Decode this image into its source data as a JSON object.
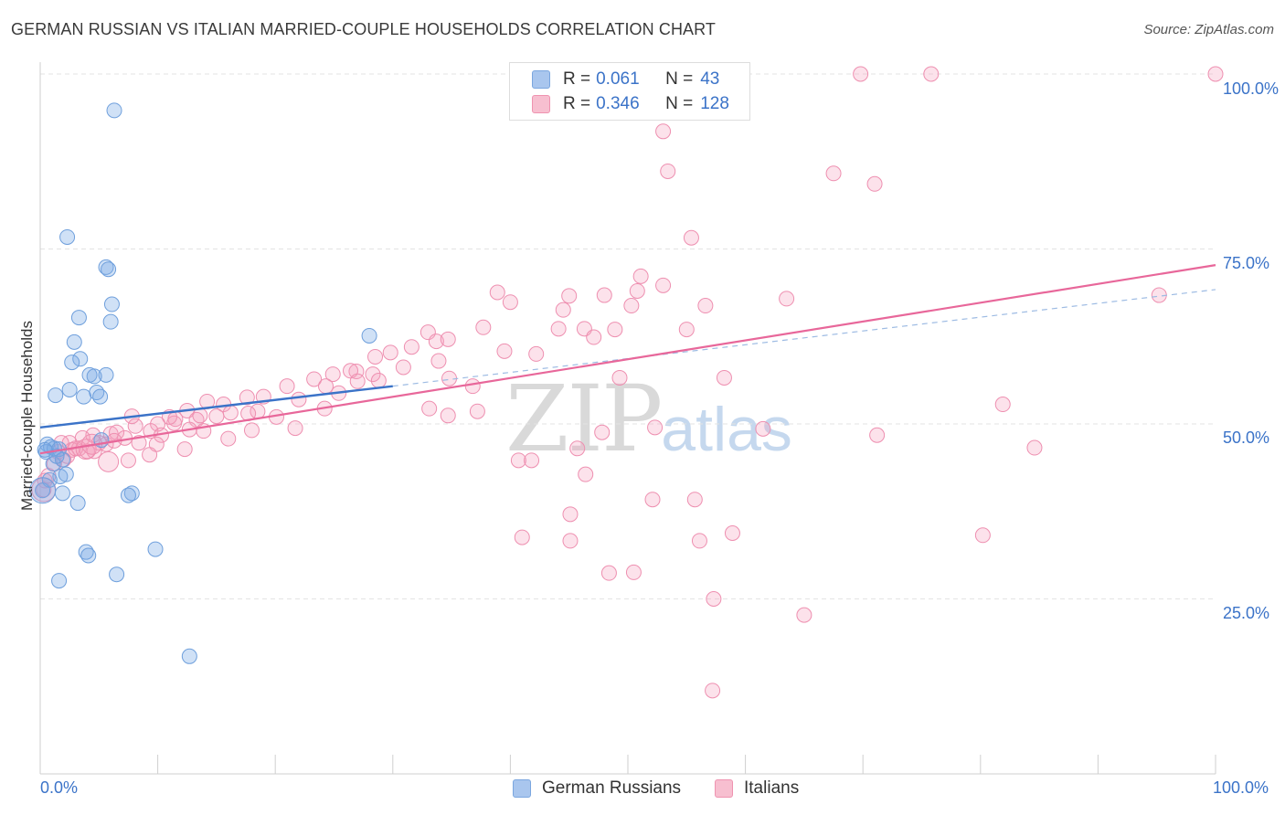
{
  "header": {
    "title": "GERMAN RUSSIAN VS ITALIAN MARRIED-COUPLE HOUSEHOLDS CORRELATION CHART",
    "source": "Source: ZipAtlas.com"
  },
  "watermark": {
    "zip": "ZIP",
    "atlas": "atlas"
  },
  "stats": {
    "rows": [
      {
        "r_label": "R =",
        "r_value": "0.061",
        "n_label": "N =",
        "n_value": "43",
        "color": "#a9c6ee",
        "border": "#7aa6df"
      },
      {
        "r_label": "R =",
        "r_value": "0.346",
        "n_label": "N =",
        "n_value": "128",
        "color": "#f7bfd0",
        "border": "#ef93b0"
      }
    ]
  },
  "legend": {
    "german_label": "German Russians",
    "italian_label": "Italians"
  },
  "colors": {
    "blue_fill": "rgba(120,168,230,0.35)",
    "blue_stroke": "#6e9fdc",
    "blue_line": "#3b73c8",
    "pink_fill": "rgba(244,160,190,0.30)",
    "pink_stroke": "#ee8fb0",
    "pink_line": "#e8679a",
    "grid": "#e3e3e3",
    "axis_text": "#3b73c8"
  },
  "chart_data": {
    "type": "scatter",
    "title": "GERMAN RUSSIAN VS ITALIAN MARRIED-COUPLE HOUSEHOLDS CORRELATION CHART",
    "xlabel": "",
    "ylabel": "Married-couple Households",
    "xlim": [
      0,
      100
    ],
    "ylim": [
      0,
      103
    ],
    "x_tick_labels": [
      "0.0%",
      "100.0%"
    ],
    "y_ticks": [
      25,
      50,
      75,
      100
    ],
    "y_tick_labels": [
      "25.0%",
      "50.0%",
      "75.0%",
      "100.0%"
    ],
    "grid": true,
    "legend_position": "bottom-center",
    "series": [
      {
        "name": "German Russians",
        "r": 0.061,
        "n": 43,
        "trend": {
          "x": [
            0,
            30
          ],
          "y": [
            49.5,
            55.4
          ]
        },
        "trend_dashed_extension": {
          "x": [
            30,
            100
          ],
          "y": [
            55.4,
            69.2
          ]
        },
        "points": [
          [
            6.3,
            94.8
          ],
          [
            2.3,
            76.7
          ],
          [
            5.6,
            72.4
          ],
          [
            5.8,
            72.1
          ],
          [
            6.1,
            67.1
          ],
          [
            6.0,
            64.6
          ],
          [
            3.3,
            65.2
          ],
          [
            2.9,
            61.7
          ],
          [
            3.4,
            59.3
          ],
          [
            2.7,
            58.8
          ],
          [
            4.2,
            57.0
          ],
          [
            5.6,
            57.0
          ],
          [
            4.6,
            56.8
          ],
          [
            4.8,
            54.5
          ],
          [
            1.3,
            54.1
          ],
          [
            2.5,
            54.9
          ],
          [
            3.7,
            53.9
          ],
          [
            5.1,
            53.9
          ],
          [
            0.6,
            47.1
          ],
          [
            0.9,
            46.7
          ],
          [
            1.2,
            46.5
          ],
          [
            0.5,
            46.0
          ],
          [
            1.6,
            46.4
          ],
          [
            5.2,
            47.7
          ],
          [
            1.1,
            44.3
          ],
          [
            1.9,
            44.9
          ],
          [
            1.7,
            42.5
          ],
          [
            2.2,
            42.8
          ],
          [
            0.8,
            42.0
          ],
          [
            1.9,
            40.1
          ],
          [
            3.2,
            38.7
          ],
          [
            7.8,
            40.1
          ],
          [
            7.5,
            39.8
          ],
          [
            3.9,
            31.7
          ],
          [
            4.1,
            31.2
          ],
          [
            9.8,
            32.1
          ],
          [
            1.6,
            27.6
          ],
          [
            6.5,
            28.5
          ],
          [
            12.7,
            16.8
          ],
          [
            28.0,
            62.6
          ],
          [
            0.2,
            40.5
          ],
          [
            0.4,
            46.3
          ],
          [
            1.4,
            45.4
          ]
        ],
        "big_points": [
          [
            0.2,
            40.5,
            14
          ]
        ]
      },
      {
        "name": "Italians",
        "r": 0.346,
        "n": 128,
        "trend": {
          "x": [
            0,
            100
          ],
          "y": [
            45.8,
            72.7
          ]
        },
        "points": [
          [
            69.8,
            100.0
          ],
          [
            75.8,
            100.0
          ],
          [
            100.0,
            100.0
          ],
          [
            53.0,
            91.8
          ],
          [
            53.4,
            86.1
          ],
          [
            67.5,
            85.8
          ],
          [
            71.0,
            84.3
          ],
          [
            55.4,
            76.6
          ],
          [
            51.1,
            71.1
          ],
          [
            53.0,
            69.8
          ],
          [
            50.8,
            69.0
          ],
          [
            45.0,
            68.3
          ],
          [
            48.0,
            68.4
          ],
          [
            63.5,
            67.9
          ],
          [
            38.9,
            68.8
          ],
          [
            40.0,
            67.4
          ],
          [
            56.6,
            66.9
          ],
          [
            50.3,
            66.9
          ],
          [
            44.5,
            66.3
          ],
          [
            95.2,
            68.4
          ],
          [
            37.7,
            63.8
          ],
          [
            44.1,
            63.6
          ],
          [
            46.3,
            63.6
          ],
          [
            48.9,
            63.5
          ],
          [
            55.0,
            63.5
          ],
          [
            47.1,
            62.4
          ],
          [
            33.0,
            63.1
          ],
          [
            33.7,
            61.8
          ],
          [
            31.6,
            61.0
          ],
          [
            29.8,
            60.2
          ],
          [
            28.5,
            59.6
          ],
          [
            34.7,
            62.1
          ],
          [
            39.5,
            60.4
          ],
          [
            42.2,
            60.0
          ],
          [
            33.9,
            59.0
          ],
          [
            30.9,
            58.1
          ],
          [
            26.9,
            57.5
          ],
          [
            26.4,
            57.6
          ],
          [
            28.3,
            57.1
          ],
          [
            24.9,
            57.1
          ],
          [
            23.3,
            56.4
          ],
          [
            24.3,
            55.4
          ],
          [
            21.0,
            55.4
          ],
          [
            22.0,
            53.5
          ],
          [
            25.4,
            54.4
          ],
          [
            27.0,
            56.1
          ],
          [
            28.8,
            56.2
          ],
          [
            34.8,
            56.5
          ],
          [
            36.8,
            55.4
          ],
          [
            49.3,
            56.6
          ],
          [
            58.2,
            56.6
          ],
          [
            19.0,
            53.9
          ],
          [
            17.6,
            53.8
          ],
          [
            18.5,
            51.8
          ],
          [
            20.1,
            51.0
          ],
          [
            15.6,
            52.8
          ],
          [
            14.2,
            53.2
          ],
          [
            16.2,
            51.6
          ],
          [
            17.7,
            51.5
          ],
          [
            12.5,
            51.9
          ],
          [
            11.5,
            50.7
          ],
          [
            11.4,
            50.1
          ],
          [
            13.3,
            50.6
          ],
          [
            15.0,
            51.1
          ],
          [
            13.6,
            51.2
          ],
          [
            11.0,
            51.0
          ],
          [
            10.0,
            50.0
          ],
          [
            8.1,
            49.7
          ],
          [
            9.4,
            49.0
          ],
          [
            7.8,
            51.1
          ],
          [
            10.3,
            48.4
          ],
          [
            12.7,
            49.2
          ],
          [
            13.9,
            49.0
          ],
          [
            8.4,
            47.3
          ],
          [
            9.9,
            47.1
          ],
          [
            5.6,
            47.1
          ],
          [
            4.5,
            48.4
          ],
          [
            6.0,
            48.6
          ],
          [
            6.5,
            48.8
          ],
          [
            7.2,
            48.0
          ],
          [
            3.6,
            48.0
          ],
          [
            2.5,
            47.3
          ],
          [
            3.3,
            46.5
          ],
          [
            4.0,
            46.1
          ],
          [
            5.0,
            47.3
          ],
          [
            1.8,
            47.3
          ],
          [
            2.7,
            46.3
          ],
          [
            1.5,
            46.0
          ],
          [
            2.3,
            45.4
          ],
          [
            1.2,
            44.3
          ],
          [
            2.0,
            44.9
          ],
          [
            0.7,
            42.6
          ],
          [
            0.4,
            41.9
          ],
          [
            0.3,
            40.6
          ],
          [
            3.0,
            46.5
          ],
          [
            4.6,
            46.1
          ],
          [
            6.3,
            47.6
          ],
          [
            9.3,
            45.6
          ],
          [
            7.5,
            44.8
          ],
          [
            12.3,
            46.4
          ],
          [
            16.0,
            47.9
          ],
          [
            18.0,
            49.1
          ],
          [
            21.7,
            49.4
          ],
          [
            24.2,
            52.2
          ],
          [
            33.1,
            52.2
          ],
          [
            34.7,
            51.2
          ],
          [
            37.2,
            51.8
          ],
          [
            45.7,
            46.5
          ],
          [
            47.8,
            48.8
          ],
          [
            52.3,
            49.5
          ],
          [
            61.5,
            49.3
          ],
          [
            71.2,
            48.4
          ],
          [
            81.9,
            52.8
          ],
          [
            84.6,
            46.6
          ],
          [
            40.7,
            44.8
          ],
          [
            41.8,
            44.8
          ],
          [
            46.4,
            42.8
          ],
          [
            52.1,
            39.2
          ],
          [
            55.7,
            39.2
          ],
          [
            45.1,
            37.1
          ],
          [
            41.0,
            33.8
          ],
          [
            45.1,
            33.3
          ],
          [
            56.1,
            33.3
          ],
          [
            58.9,
            34.4
          ],
          [
            80.2,
            34.1
          ],
          [
            48.4,
            28.7
          ],
          [
            50.5,
            28.8
          ],
          [
            57.3,
            25.0
          ],
          [
            65.0,
            22.7
          ],
          [
            57.2,
            11.9
          ]
        ],
        "big_points": [
          [
            0.3,
            40.6,
            13
          ],
          [
            5.8,
            44.6,
            11
          ],
          [
            3.9,
            46.4,
            11
          ],
          [
            4.4,
            47.1,
            11
          ]
        ]
      }
    ]
  }
}
